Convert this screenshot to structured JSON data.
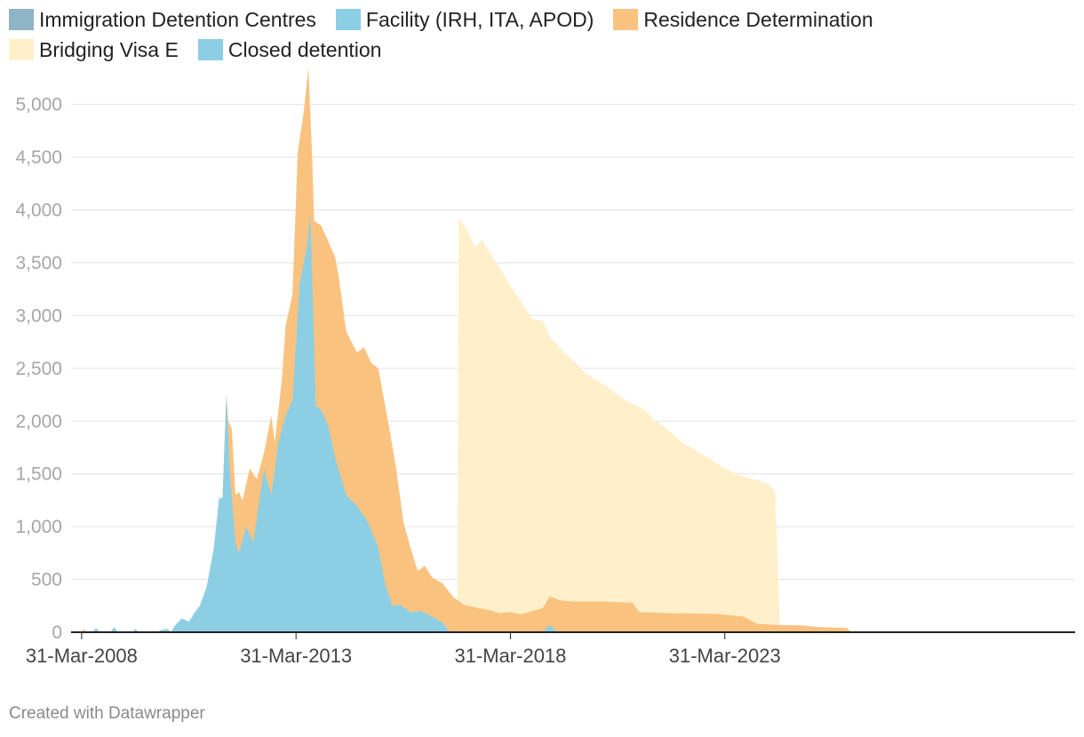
{
  "legend": [
    {
      "label": "Immigration Detention Centres",
      "color": "#8fb4c4"
    },
    {
      "label": "Facility (IRH, ITA, APOD)",
      "color": "#8ccfe4"
    },
    {
      "label": "Residence Determination",
      "color": "#fac27f"
    },
    {
      "label": "Bridging Visa E",
      "color": "#fff0cb"
    },
    {
      "label": "Closed detention",
      "color": "#8ccfe4"
    }
  ],
  "footer": "Created with Datawrapper",
  "chart_data": {
    "type": "area",
    "title": "",
    "xlabel": "",
    "ylabel": "",
    "xlim": [
      "2008-01-01",
      "2031-06-01"
    ],
    "ylim": [
      0,
      5300
    ],
    "yticks": [
      0,
      500,
      1000,
      1500,
      2000,
      2500,
      3000,
      3500,
      4000,
      4500,
      5000
    ],
    "ytick_labels": [
      "0",
      "500",
      "1,000",
      "1,500",
      "2,000",
      "2,500",
      "3,000",
      "3,500",
      "4,000",
      "4,500",
      "5,000"
    ],
    "xticks": [
      "2008-03-31",
      "2013-03-31",
      "2018-03-31",
      "2023-03-31"
    ],
    "xtick_labels": [
      "31-Mar-2008",
      "31-Mar-2013",
      "31-Mar-2018",
      "31-Mar-2023"
    ],
    "grid": true,
    "legend_position": "top",
    "series": [
      {
        "name": "Bridging Visa E",
        "color": "#fff0cb",
        "points": [
          [
            "2017-01-01",
            0
          ],
          [
            "2017-01-15",
            3930
          ],
          [
            "2017-04-01",
            3800
          ],
          [
            "2017-06-01",
            3650
          ],
          [
            "2017-08-01",
            3720
          ],
          [
            "2017-10-01",
            3600
          ],
          [
            "2018-01-01",
            3450
          ],
          [
            "2018-04-01",
            3280
          ],
          [
            "2018-07-01",
            3130
          ],
          [
            "2018-10-01",
            2970
          ],
          [
            "2019-01-01",
            2950
          ],
          [
            "2019-03-01",
            2800
          ],
          [
            "2019-07-01",
            2650
          ],
          [
            "2019-10-01",
            2560
          ],
          [
            "2020-01-01",
            2450
          ],
          [
            "2020-06-01",
            2350
          ],
          [
            "2020-10-01",
            2250
          ],
          [
            "2021-01-01",
            2180
          ],
          [
            "2021-05-01",
            2120
          ],
          [
            "2021-08-01",
            2020
          ],
          [
            "2021-12-01",
            1920
          ],
          [
            "2022-04-01",
            1800
          ],
          [
            "2022-08-01",
            1720
          ],
          [
            "2022-12-01",
            1640
          ],
          [
            "2023-04-01",
            1550
          ],
          [
            "2023-08-01",
            1490
          ],
          [
            "2024-01-01",
            1440
          ],
          [
            "2024-04-01",
            1410
          ],
          [
            "2024-06-01",
            1340
          ],
          [
            "2024-07-15",
            0
          ]
        ]
      },
      {
        "name": "Residence Determination",
        "color": "#fac27f",
        "points": [
          [
            "2008-01-01",
            0
          ],
          [
            "2008-03-31",
            0
          ],
          [
            "2008-04-15",
            30
          ],
          [
            "2008-05-15",
            0
          ],
          [
            "2011-06-01",
            0
          ],
          [
            "2011-08-15",
            2260
          ],
          [
            "2011-09-01",
            2000
          ],
          [
            "2011-10-01",
            1930
          ],
          [
            "2011-11-01",
            1300
          ],
          [
            "2011-12-01",
            1330
          ],
          [
            "2012-01-01",
            1250
          ],
          [
            "2012-03-01",
            1550
          ],
          [
            "2012-05-01",
            1450
          ],
          [
            "2012-07-01",
            1700
          ],
          [
            "2012-09-01",
            2050
          ],
          [
            "2012-10-01",
            1800
          ],
          [
            "2012-12-01",
            2400
          ],
          [
            "2013-01-01",
            2900
          ],
          [
            "2013-03-01",
            3200
          ],
          [
            "2013-04-15",
            4550
          ],
          [
            "2013-06-01",
            4900
          ],
          [
            "2013-07-15",
            5350
          ],
          [
            "2013-08-15",
            4500
          ],
          [
            "2013-09-01",
            3900
          ],
          [
            "2013-11-01",
            3850
          ],
          [
            "2014-01-01",
            3700
          ],
          [
            "2014-03-01",
            3550
          ],
          [
            "2014-04-01",
            3350
          ],
          [
            "2014-06-01",
            2850
          ],
          [
            "2014-09-01",
            2650
          ],
          [
            "2014-11-01",
            2700
          ],
          [
            "2015-01-01",
            2550
          ],
          [
            "2015-03-01",
            2500
          ],
          [
            "2015-06-01",
            1950
          ],
          [
            "2015-08-01",
            1550
          ],
          [
            "2015-10-01",
            1050
          ],
          [
            "2015-12-01",
            800
          ],
          [
            "2016-02-01",
            580
          ],
          [
            "2016-04-01",
            630
          ],
          [
            "2016-06-01",
            520
          ],
          [
            "2016-09-01",
            460
          ],
          [
            "2016-12-01",
            330
          ],
          [
            "2017-03-01",
            260
          ],
          [
            "2017-07-01",
            230
          ],
          [
            "2017-10-01",
            210
          ],
          [
            "2018-01-01",
            180
          ],
          [
            "2018-04-01",
            190
          ],
          [
            "2018-07-01",
            170
          ],
          [
            "2019-01-01",
            230
          ],
          [
            "2019-03-01",
            340
          ],
          [
            "2019-06-01",
            300
          ],
          [
            "2019-10-01",
            290
          ],
          [
            "2020-06-01",
            290
          ],
          [
            "2021-02-01",
            280
          ],
          [
            "2021-04-01",
            190
          ],
          [
            "2022-01-01",
            180
          ],
          [
            "2023-01-01",
            175
          ],
          [
            "2023-09-01",
            150
          ],
          [
            "2024-01-01",
            80
          ],
          [
            "2024-06-01",
            70
          ],
          [
            "2025-01-01",
            65
          ],
          [
            "2025-06-01",
            50
          ],
          [
            "2026-02-01",
            40
          ],
          [
            "2026-03-15",
            0
          ],
          [
            "2031-06-01",
            0
          ]
        ]
      },
      {
        "name": "Closed detention",
        "color": "#8ccfe4",
        "points": [
          [
            "2008-01-01",
            0
          ],
          [
            "2008-07-01",
            0
          ],
          [
            "2008-08-01",
            40
          ],
          [
            "2008-09-01",
            0
          ],
          [
            "2008-12-01",
            0
          ],
          [
            "2009-01-01",
            50
          ],
          [
            "2009-02-01",
            0
          ],
          [
            "2009-06-01",
            0
          ],
          [
            "2009-07-01",
            30
          ],
          [
            "2009-08-01",
            0
          ],
          [
            "2010-01-01",
            0
          ],
          [
            "2010-02-01",
            20
          ],
          [
            "2010-04-01",
            30
          ],
          [
            "2010-05-01",
            0
          ],
          [
            "2010-06-01",
            60
          ],
          [
            "2010-08-01",
            130
          ],
          [
            "2010-10-01",
            100
          ],
          [
            "2010-11-15",
            180
          ],
          [
            "2011-01-01",
            250
          ],
          [
            "2011-03-01",
            430
          ],
          [
            "2011-05-01",
            800
          ],
          [
            "2011-06-15",
            1270
          ],
          [
            "2011-07-15",
            1270
          ],
          [
            "2011-08-15",
            2250
          ],
          [
            "2011-09-15",
            1500
          ],
          [
            "2011-11-01",
            850
          ],
          [
            "2011-12-01",
            750
          ],
          [
            "2012-02-01",
            1000
          ],
          [
            "2012-04-01",
            850
          ],
          [
            "2012-07-01",
            1550
          ],
          [
            "2012-09-01",
            1300
          ],
          [
            "2012-11-01",
            1800
          ],
          [
            "2013-01-01",
            2050
          ],
          [
            "2013-03-01",
            2200
          ],
          [
            "2013-05-01",
            3300
          ],
          [
            "2013-07-01",
            3650
          ],
          [
            "2013-08-01",
            3950
          ],
          [
            "2013-09-15",
            2150
          ],
          [
            "2013-11-01",
            2100
          ],
          [
            "2014-01-01",
            1950
          ],
          [
            "2014-03-01",
            1650
          ],
          [
            "2014-06-01",
            1300
          ],
          [
            "2014-09-01",
            1200
          ],
          [
            "2014-12-01",
            1050
          ],
          [
            "2015-03-01",
            800
          ],
          [
            "2015-05-01",
            450
          ],
          [
            "2015-07-01",
            250
          ],
          [
            "2015-09-01",
            260
          ],
          [
            "2015-12-01",
            190
          ],
          [
            "2016-03-01",
            200
          ],
          [
            "2016-06-01",
            150
          ],
          [
            "2016-09-01",
            90
          ],
          [
            "2016-11-01",
            0
          ],
          [
            "2019-01-01",
            0
          ],
          [
            "2019-03-01",
            70
          ],
          [
            "2019-05-01",
            0
          ],
          [
            "2031-06-01",
            0
          ]
        ]
      }
    ]
  }
}
